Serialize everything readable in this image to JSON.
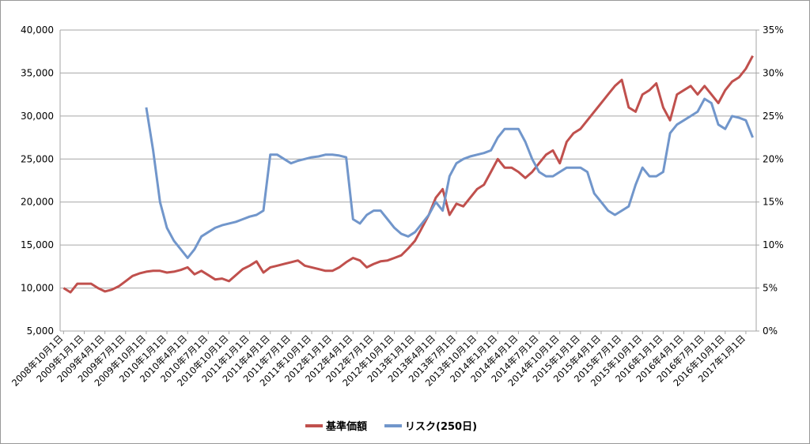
{
  "chart_data": {
    "type": "line",
    "categories": [
      "2008年10月1日",
      null,
      null,
      "2009年1月1日",
      null,
      null,
      "2009年4月1日",
      null,
      null,
      "2009年7月1日",
      null,
      null,
      "2009年10月1日",
      null,
      null,
      "2010年1月1日",
      null,
      null,
      "2010年4月1日",
      null,
      null,
      "2010年7月1日",
      null,
      null,
      "2010年10月1日",
      null,
      null,
      "2011年1月1日",
      null,
      null,
      "2011年4月1日",
      null,
      null,
      "2011年7月1日",
      null,
      null,
      "2011年10月1日",
      null,
      null,
      "2012年1月1日",
      null,
      null,
      "2012年4月1日",
      null,
      null,
      "2012年7月1日",
      null,
      null,
      "2012年10月1日",
      null,
      null,
      "2013年1月1日",
      null,
      null,
      "2013年4月1日",
      null,
      null,
      "2013年7月1日",
      null,
      null,
      "2013年10月1日",
      null,
      null,
      "2014年1月1日",
      null,
      null,
      "2014年4月1日",
      null,
      null,
      "2014年7月1日",
      null,
      null,
      "2014年10月1日",
      null,
      null,
      "2015年1月1日",
      null,
      null,
      "2015年4月1日",
      null,
      null,
      "2015年7月1日",
      null,
      null,
      "2015年10月1日",
      null,
      null,
      "2016年1月1日",
      null,
      null,
      "2016年4月1日",
      null,
      null,
      "2016年7月1日",
      null,
      null,
      "2016年10月1日",
      null,
      null,
      "2017年1月1日",
      null
    ],
    "series": [
      {
        "name": "基準価額",
        "color": "#c0504d",
        "axis": "y",
        "values": [
          10000,
          9500,
          10500,
          10500,
          10500,
          10000,
          9600,
          9800,
          10200,
          10800,
          11400,
          11700,
          11900,
          12000,
          12000,
          11800,
          11900,
          12100,
          12400,
          11600,
          12000,
          11500,
          11000,
          11100,
          10800,
          11500,
          12200,
          12600,
          13100,
          11800,
          12400,
          12600,
          12800,
          13000,
          13200,
          12600,
          12400,
          12200,
          12000,
          12000,
          12400,
          13000,
          13500,
          13200,
          12400,
          12800,
          13100,
          13200,
          13500,
          13800,
          14600,
          15500,
          17000,
          18500,
          20500,
          21500,
          18500,
          19800,
          19500,
          20500,
          21500,
          22000,
          23500,
          25000,
          24000,
          24000,
          23500,
          22800,
          23500,
          24500,
          25500,
          26000,
          24500,
          27000,
          28000,
          28500,
          29500,
          30500,
          31500,
          32500,
          33500,
          34200,
          31000,
          30500,
          32500,
          33000,
          33800,
          31000,
          29500,
          32500,
          33000,
          33500,
          32500,
          33500,
          32500,
          31500,
          33000,
          34000,
          34500,
          35500,
          37000
        ]
      },
      {
        "name": "リスク(250日)",
        "color": "#7196cb",
        "axis": "y2",
        "values": [
          null,
          null,
          null,
          null,
          null,
          null,
          null,
          null,
          null,
          null,
          null,
          null,
          26,
          21,
          15,
          12,
          10.5,
          9.5,
          8.5,
          9.5,
          11,
          11.5,
          12,
          12.3,
          12.5,
          12.7,
          13,
          13.3,
          13.5,
          14,
          20.5,
          20.5,
          20,
          19.5,
          19.8,
          20,
          20.2,
          20.3,
          20.5,
          20.5,
          20.4,
          20.2,
          13,
          12.5,
          13.5,
          14,
          14,
          13,
          12,
          11.3,
          11,
          11.5,
          12.5,
          13.5,
          15,
          14,
          18,
          19.5,
          20,
          20.3,
          20.5,
          20.7,
          21,
          22.5,
          23.5,
          23.5,
          23.5,
          22,
          20,
          18.5,
          18,
          18,
          18.5,
          19,
          19,
          19,
          18.5,
          16,
          15,
          14,
          13.5,
          14,
          14.5,
          17,
          19,
          18,
          18,
          18.5,
          23,
          24,
          24.5,
          25,
          25.5,
          27,
          26.5,
          24,
          23.5,
          25,
          24.8,
          24.5,
          22.5
        ]
      }
    ],
    "ylim": [
      5000,
      40000
    ],
    "yticks": [
      {
        "value": 5000,
        "label": "5,000"
      },
      {
        "value": 10000,
        "label": "10,000"
      },
      {
        "value": 15000,
        "label": "15,000"
      },
      {
        "value": 20000,
        "label": "20,000"
      },
      {
        "value": 25000,
        "label": "25,000"
      },
      {
        "value": 30000,
        "label": "30,000"
      },
      {
        "value": 35000,
        "label": "35,000"
      },
      {
        "value": 40000,
        "label": "40,000"
      }
    ],
    "y2lim": [
      0,
      35
    ],
    "y2ticks": [
      {
        "value": 0,
        "label": "0%"
      },
      {
        "value": 5,
        "label": "5%"
      },
      {
        "value": 10,
        "label": "10%"
      },
      {
        "value": 15,
        "label": "15%"
      },
      {
        "value": 20,
        "label": "20%"
      },
      {
        "value": 25,
        "label": "25%"
      },
      {
        "value": 30,
        "label": "30%"
      },
      {
        "value": 35,
        "label": "35%"
      }
    ],
    "grid": true,
    "legend": "bottom"
  }
}
